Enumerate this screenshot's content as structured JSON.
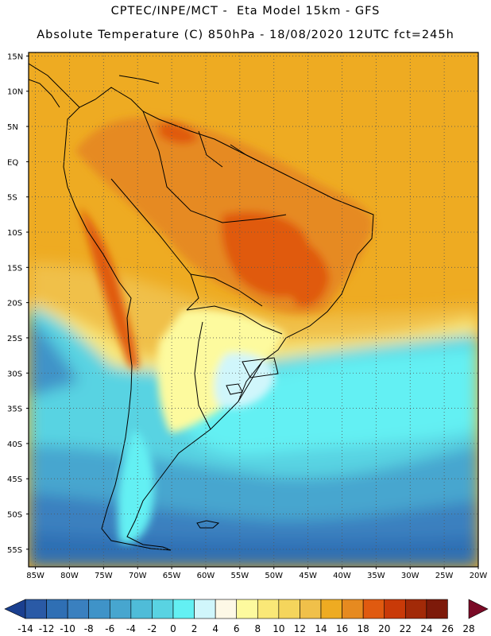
{
  "header": {
    "line1": "CPTEC/INPE/MCT -  Eta Model 15km - GFS",
    "line2": "Absolute Temperature (C) 850hPa - 18/08/2020 12UTC fct=245h"
  },
  "map": {
    "lat_labels": [
      "15N",
      "10N",
      "5N",
      "EQ",
      "5S",
      "10S",
      "15S",
      "20S",
      "25S",
      "30S",
      "35S",
      "40S",
      "45S",
      "50S",
      "55S"
    ],
    "lon_labels": [
      "85W",
      "80W",
      "75W",
      "70W",
      "65W",
      "60W",
      "55W",
      "50W",
      "45W",
      "40W",
      "35W",
      "30W",
      "25W",
      "20W"
    ],
    "lat_range": [
      15.5,
      -57.5
    ],
    "lon_range": [
      -86,
      -20
    ],
    "grid": true
  },
  "colorbar": {
    "labels": [
      "-14",
      "-12",
      "-10",
      "-8",
      "-6",
      "-4",
      "-2",
      "0",
      "2",
      "4",
      "6",
      "8",
      "10",
      "12",
      "14",
      "16",
      "18",
      "20",
      "22",
      "24",
      "26",
      "28"
    ],
    "colors": [
      "#1a3f8f",
      "#2a5aa6",
      "#2f6fb4",
      "#3a80bf",
      "#3f93c8",
      "#47a6cf",
      "#4fbcd8",
      "#59d3e2",
      "#63f0f3",
      "#d0f6fb",
      "#fdf8e6",
      "#fdfa9e",
      "#fae877",
      "#f5d55c",
      "#f0c04a",
      "#eeab22",
      "#e68a20",
      "#e05a10",
      "#c93a08",
      "#a22a08",
      "#7d1a0a",
      "#7a0a26"
    ]
  }
}
